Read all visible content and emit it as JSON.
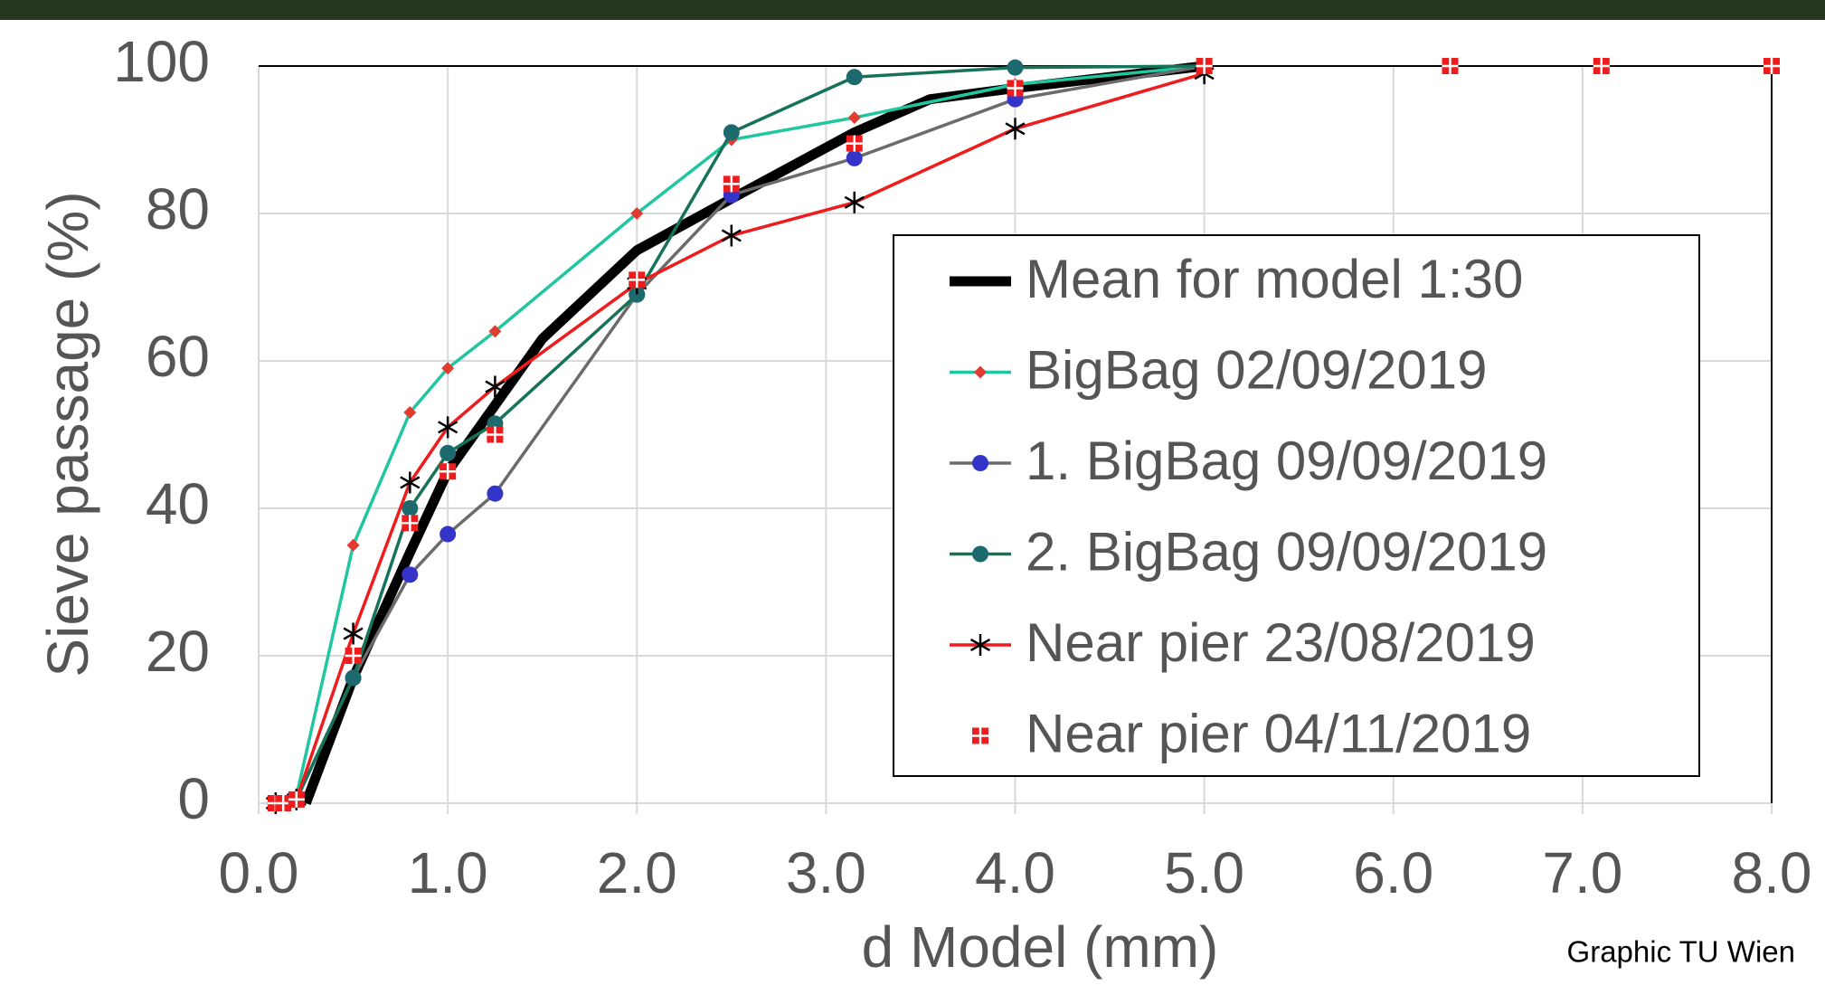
{
  "chart_data": {
    "type": "line",
    "x_label": "d Model (mm)",
    "y_label": "Sieve passage (%)",
    "annotation": "Graphic TU Wien",
    "xlim": [
      0,
      8
    ],
    "ylim": [
      0,
      100
    ],
    "xticks": [
      {
        "value": 0,
        "label": "0.0"
      },
      {
        "value": 1,
        "label": "1.0"
      },
      {
        "value": 2,
        "label": "2.0"
      },
      {
        "value": 3,
        "label": "3.0"
      },
      {
        "value": 4,
        "label": "4.0"
      },
      {
        "value": 5,
        "label": "5.0"
      },
      {
        "value": 6,
        "label": "6.0"
      },
      {
        "value": 7,
        "label": "7.0"
      },
      {
        "value": 8,
        "label": "8.0"
      }
    ],
    "yticks": [
      0,
      20,
      40,
      60,
      80,
      100
    ],
    "grid": true,
    "legend": "right",
    "series": [
      {
        "name": "Mean for model 1:30",
        "color": "#000000",
        "line": true,
        "line_width": 11,
        "marker": "none",
        "marker_color": "#000000",
        "x": [
          0.25,
          0.5,
          0.8,
          1.0,
          1.25,
          1.5,
          2.0,
          2.5,
          3.15,
          3.55,
          4.0,
          5.0
        ],
        "values": [
          0,
          17,
          34,
          45,
          54,
          63,
          75,
          82,
          91,
          95.5,
          97,
          100
        ]
      },
      {
        "name": "BigBag 02/09/2019",
        "color": "#1fc6a0",
        "line": true,
        "line_width": 3.5,
        "marker": "diamond",
        "marker_color": "#e03c31",
        "x": [
          0.09,
          0.2,
          0.5,
          0.8,
          1.0,
          1.25,
          2.0,
          2.5,
          3.15,
          4.0,
          5.0
        ],
        "values": [
          0,
          1,
          35,
          53,
          59,
          64,
          80,
          90,
          93,
          97.5,
          100
        ]
      },
      {
        "name": "1. BigBag 09/09/2019",
        "color": "#6b6b6b",
        "line": true,
        "line_width": 3.5,
        "marker": "circle",
        "marker_color": "#3434c8",
        "x": [
          0.09,
          0.2,
          0.5,
          0.8,
          1.0,
          1.25,
          2.0,
          2.5,
          3.15,
          4.0,
          5.0
        ],
        "values": [
          0,
          0.5,
          17,
          31,
          36.5,
          42,
          69,
          82.5,
          87.5,
          95.5,
          100
        ]
      },
      {
        "name": "2. BigBag 09/09/2019",
        "color": "#16735a",
        "line": true,
        "line_width": 3.5,
        "marker": "circle",
        "marker_color": "#1d6a6e",
        "x": [
          0.09,
          0.2,
          0.5,
          0.8,
          1.0,
          1.25,
          2.0,
          2.5,
          3.15,
          4.0,
          5.0
        ],
        "values": [
          0,
          0.5,
          17,
          40,
          47.5,
          51.5,
          69,
          91,
          98.5,
          99.8,
          100
        ]
      },
      {
        "name": "Near pier 23/08/2019",
        "color": "#ee1c1c",
        "line": true,
        "line_width": 3.5,
        "marker": "asterisk",
        "marker_color": "#000000",
        "x": [
          0.09,
          0.2,
          0.5,
          0.8,
          1.0,
          1.25,
          2.0,
          2.5,
          3.15,
          4.0,
          5.0
        ],
        "values": [
          0,
          0.5,
          23,
          43.5,
          51,
          56.5,
          70.5,
          77,
          81.5,
          91.5,
          99
        ]
      },
      {
        "name": "Near pier 04/11/2019",
        "color": "#ee1c1c",
        "line": false,
        "line_width": 0,
        "marker": "square",
        "marker_color": "#ee1c1c",
        "x": [
          0.09,
          0.13,
          0.2,
          0.5,
          0.8,
          1.0,
          1.25,
          2.0,
          2.5,
          3.15,
          4.0,
          5.0,
          6.3,
          7.1,
          8.0
        ],
        "values": [
          0,
          0,
          0.5,
          20,
          38,
          45,
          50,
          71,
          84,
          89.5,
          97,
          100,
          100,
          100,
          100
        ]
      }
    ]
  }
}
